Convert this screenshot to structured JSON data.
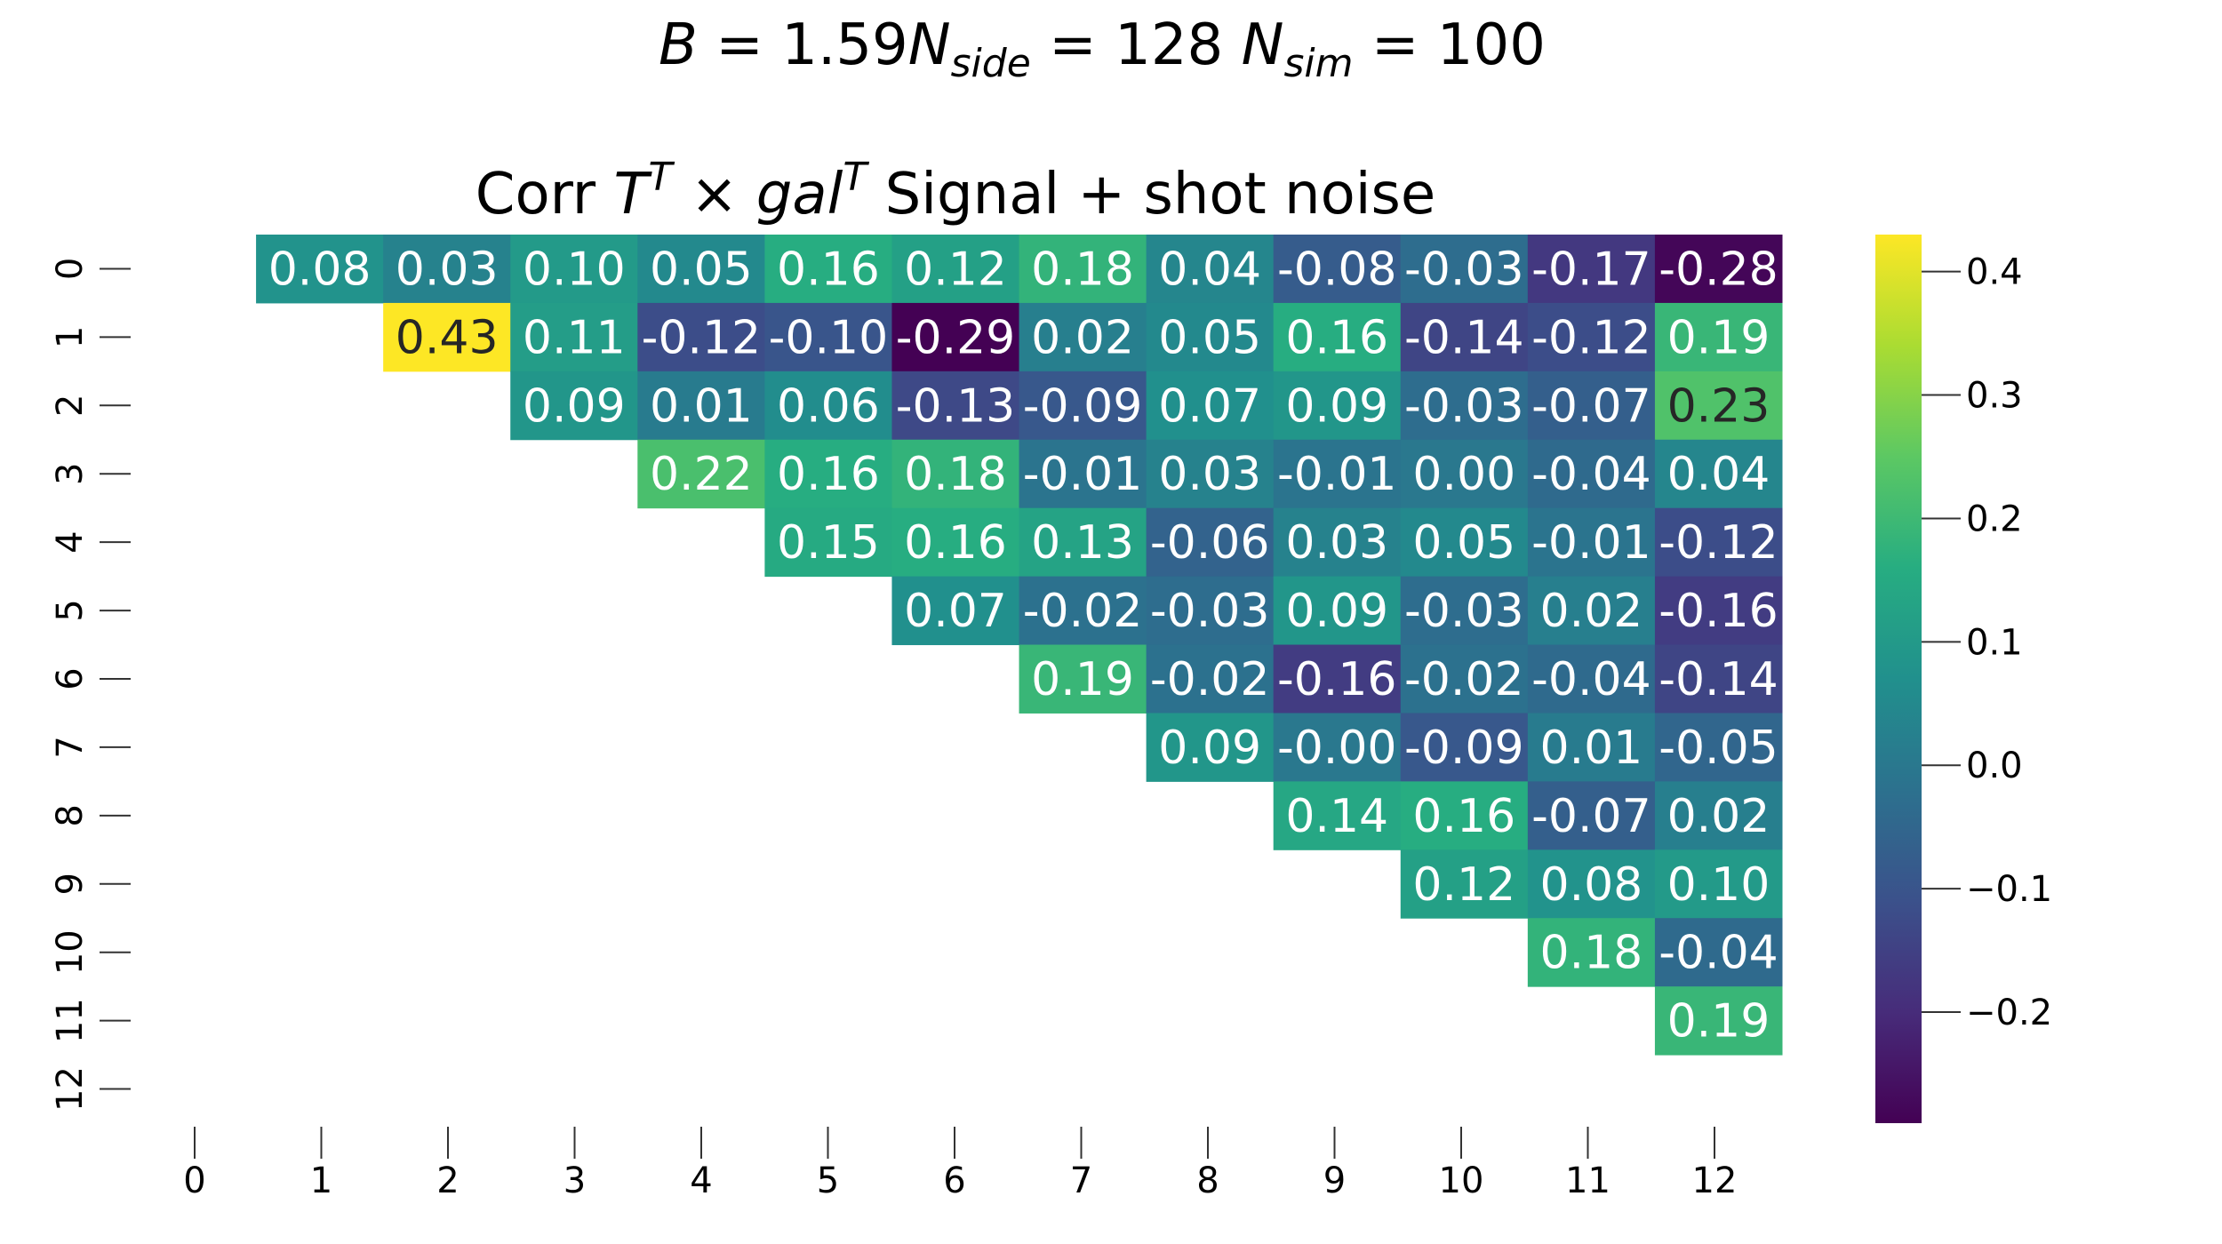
{
  "chart_data": {
    "type": "heatmap",
    "suptitle": "B = 1.59N_side = 128 N_sim = 100",
    "title": "Corr T^T × gal^T Signal + shot noise",
    "row_labels": [
      "0",
      "1",
      "2",
      "3",
      "4",
      "5",
      "6",
      "7",
      "8",
      "9",
      "10",
      "11",
      "12"
    ],
    "col_labels": [
      "0",
      "1",
      "2",
      "3",
      "4",
      "5",
      "6",
      "7",
      "8",
      "9",
      "10",
      "11",
      "12"
    ],
    "mask": "lower triangle and diagonal",
    "colormap": "viridis",
    "vmin": -0.29,
    "vmax": 0.43,
    "colorbar_ticks": [
      "0.4",
      "0.3",
      "0.2",
      "0.1",
      "0.0",
      "−0.1",
      "−0.2"
    ],
    "colorbar_tick_values": [
      0.4,
      0.3,
      0.2,
      0.1,
      0.0,
      -0.1,
      -0.2
    ],
    "cells": [
      {
        "row": 0,
        "col": 1,
        "label": "0.08"
      },
      {
        "row": 0,
        "col": 2,
        "label": "0.03"
      },
      {
        "row": 0,
        "col": 3,
        "label": "0.10"
      },
      {
        "row": 0,
        "col": 4,
        "label": "0.05"
      },
      {
        "row": 0,
        "col": 5,
        "label": "0.16"
      },
      {
        "row": 0,
        "col": 6,
        "label": "0.12"
      },
      {
        "row": 0,
        "col": 7,
        "label": "0.18"
      },
      {
        "row": 0,
        "col": 8,
        "label": "0.04"
      },
      {
        "row": 0,
        "col": 9,
        "label": "-0.08"
      },
      {
        "row": 0,
        "col": 10,
        "label": "-0.03"
      },
      {
        "row": 0,
        "col": 11,
        "label": "-0.17"
      },
      {
        "row": 0,
        "col": 12,
        "label": "-0.28"
      },
      {
        "row": 1,
        "col": 2,
        "label": "0.43"
      },
      {
        "row": 1,
        "col": 3,
        "label": "0.11"
      },
      {
        "row": 1,
        "col": 4,
        "label": "-0.12"
      },
      {
        "row": 1,
        "col": 5,
        "label": "-0.10"
      },
      {
        "row": 1,
        "col": 6,
        "label": "-0.29"
      },
      {
        "row": 1,
        "col": 7,
        "label": "0.02"
      },
      {
        "row": 1,
        "col": 8,
        "label": "0.05"
      },
      {
        "row": 1,
        "col": 9,
        "label": "0.16"
      },
      {
        "row": 1,
        "col": 10,
        "label": "-0.14"
      },
      {
        "row": 1,
        "col": 11,
        "label": "-0.12"
      },
      {
        "row": 1,
        "col": 12,
        "label": "0.19"
      },
      {
        "row": 2,
        "col": 3,
        "label": "0.09"
      },
      {
        "row": 2,
        "col": 4,
        "label": "0.01"
      },
      {
        "row": 2,
        "col": 5,
        "label": "0.06"
      },
      {
        "row": 2,
        "col": 6,
        "label": "-0.13"
      },
      {
        "row": 2,
        "col": 7,
        "label": "-0.09"
      },
      {
        "row": 2,
        "col": 8,
        "label": "0.07"
      },
      {
        "row": 2,
        "col": 9,
        "label": "0.09"
      },
      {
        "row": 2,
        "col": 10,
        "label": "-0.03"
      },
      {
        "row": 2,
        "col": 11,
        "label": "-0.07"
      },
      {
        "row": 2,
        "col": 12,
        "label": "0.23"
      },
      {
        "row": 3,
        "col": 4,
        "label": "0.22"
      },
      {
        "row": 3,
        "col": 5,
        "label": "0.16"
      },
      {
        "row": 3,
        "col": 6,
        "label": "0.18"
      },
      {
        "row": 3,
        "col": 7,
        "label": "-0.01"
      },
      {
        "row": 3,
        "col": 8,
        "label": "0.03"
      },
      {
        "row": 3,
        "col": 9,
        "label": "-0.01"
      },
      {
        "row": 3,
        "col": 10,
        "label": "0.00"
      },
      {
        "row": 3,
        "col": 11,
        "label": "-0.04"
      },
      {
        "row": 3,
        "col": 12,
        "label": "0.04"
      },
      {
        "row": 4,
        "col": 5,
        "label": "0.15"
      },
      {
        "row": 4,
        "col": 6,
        "label": "0.16"
      },
      {
        "row": 4,
        "col": 7,
        "label": "0.13"
      },
      {
        "row": 4,
        "col": 8,
        "label": "-0.06"
      },
      {
        "row": 4,
        "col": 9,
        "label": "0.03"
      },
      {
        "row": 4,
        "col": 10,
        "label": "0.05"
      },
      {
        "row": 4,
        "col": 11,
        "label": "-0.01"
      },
      {
        "row": 4,
        "col": 12,
        "label": "-0.12"
      },
      {
        "row": 5,
        "col": 6,
        "label": "0.07"
      },
      {
        "row": 5,
        "col": 7,
        "label": "-0.02"
      },
      {
        "row": 5,
        "col": 8,
        "label": "-0.03"
      },
      {
        "row": 5,
        "col": 9,
        "label": "0.09"
      },
      {
        "row": 5,
        "col": 10,
        "label": "-0.03"
      },
      {
        "row": 5,
        "col": 11,
        "label": "0.02"
      },
      {
        "row": 5,
        "col": 12,
        "label": "-0.16"
      },
      {
        "row": 6,
        "col": 7,
        "label": "0.19"
      },
      {
        "row": 6,
        "col": 8,
        "label": "-0.02"
      },
      {
        "row": 6,
        "col": 9,
        "label": "-0.16"
      },
      {
        "row": 6,
        "col": 10,
        "label": "-0.02"
      },
      {
        "row": 6,
        "col": 11,
        "label": "-0.04"
      },
      {
        "row": 6,
        "col": 12,
        "label": "-0.14"
      },
      {
        "row": 7,
        "col": 8,
        "label": "0.09"
      },
      {
        "row": 7,
        "col": 9,
        "label": "-0.00"
      },
      {
        "row": 7,
        "col": 10,
        "label": "-0.09"
      },
      {
        "row": 7,
        "col": 11,
        "label": "0.01"
      },
      {
        "row": 7,
        "col": 12,
        "label": "-0.05"
      },
      {
        "row": 8,
        "col": 9,
        "label": "0.14"
      },
      {
        "row": 8,
        "col": 10,
        "label": "0.16"
      },
      {
        "row": 8,
        "col": 11,
        "label": "-0.07"
      },
      {
        "row": 8,
        "col": 12,
        "label": "0.02"
      },
      {
        "row": 9,
        "col": 10,
        "label": "0.12"
      },
      {
        "row": 9,
        "col": 11,
        "label": "0.08"
      },
      {
        "row": 9,
        "col": 12,
        "label": "0.10"
      },
      {
        "row": 10,
        "col": 11,
        "label": "0.18"
      },
      {
        "row": 10,
        "col": 12,
        "label": "-0.04"
      },
      {
        "row": 11,
        "col": 12,
        "label": "0.19"
      }
    ]
  }
}
